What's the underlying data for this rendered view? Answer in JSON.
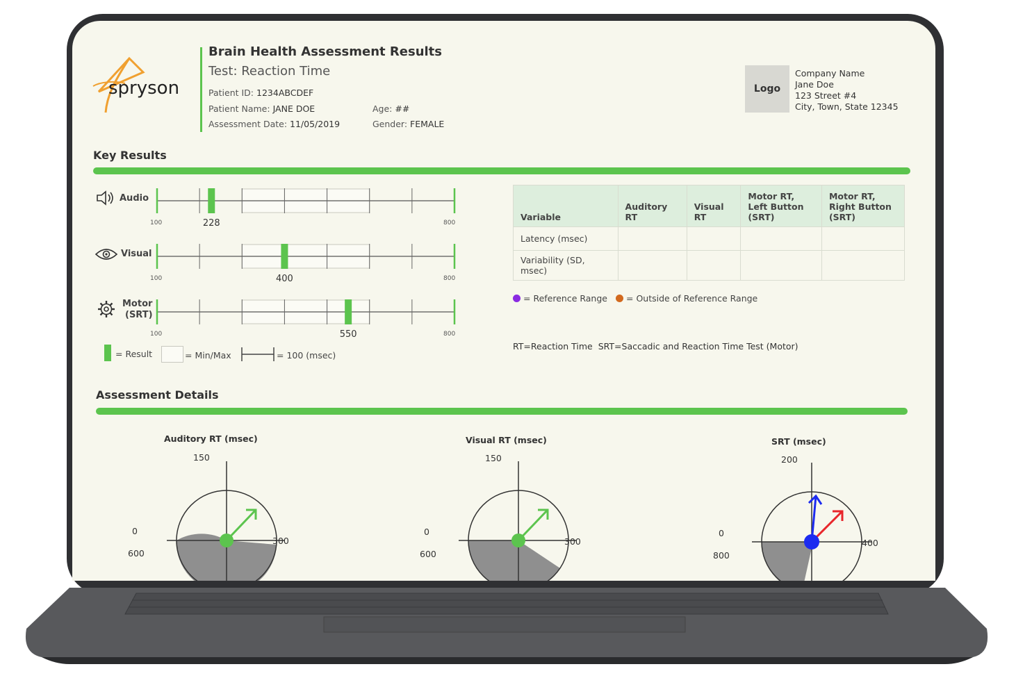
{
  "report": {
    "title": "Brain Health Assessment Results",
    "subtitle": "Test: Reaction Time",
    "patient_id_label": "Patient ID:",
    "patient_id": "1234ABCDEF",
    "patient_name_label": "Patient Name:",
    "patient_name": "JANE DOE",
    "assessment_date_label": "Assessment Date:",
    "assessment_date": "11/05/2019",
    "age_label": "Age:",
    "age": "##",
    "gender_label": "Gender:",
    "gender": "FEMALE"
  },
  "brand": {
    "name": "spryson",
    "accent": "#f0a030"
  },
  "company": {
    "logo_placeholder": "Logo",
    "name": "Company Name",
    "contact": "Jane Doe",
    "street": "123 Street #4",
    "city": "City, Town, State 12345"
  },
  "key_results": {
    "title": "Key Results",
    "scale_min": "100",
    "scale_max": "800",
    "rows": [
      {
        "label": "Audio",
        "label2": "",
        "icon": "speaker-icon",
        "result": 228,
        "result_label": "228"
      },
      {
        "label": "Visual",
        "label2": "",
        "icon": "eye-icon",
        "result": 400,
        "result_label": "400"
      },
      {
        "label": "Motor",
        "label2": "(SRT)",
        "icon": "gear-icon",
        "result": 550,
        "result_label": "550"
      }
    ],
    "legend": {
      "result": "= Result",
      "minmax": "= Min/Max",
      "unit": "= 100 (msec)"
    }
  },
  "variables_table": {
    "headers": [
      "Variable",
      "Auditory RT",
      "Visual RT",
      "Motor RT, Left Button (SRT)",
      "Motor RT, Right Button (SRT)"
    ],
    "rows": [
      [
        "Latency (msec)",
        "",
        "",
        "",
        ""
      ],
      [
        "Variability (SD, msec)",
        "",
        "",
        "",
        ""
      ]
    ],
    "legend_reference": "= Reference Range",
    "legend_outside": "= Outside of Reference Range",
    "reference_color": "#8a2be2",
    "outside_color": "#d2691e"
  },
  "abbreviations": {
    "rt": "RT=Reaction Time",
    "srt": "SRT=Saccadic and Reaction Time Test (Motor)"
  },
  "assessment_details": {
    "title": "Assessment Details",
    "dials": [
      {
        "title": "Auditory RT (msec)",
        "top": "150",
        "right": "300",
        "left_top": "0",
        "left_bottom": "600"
      },
      {
        "title": "Visual RT (msec)",
        "top": "150",
        "right": "300",
        "left_top": "0",
        "left_bottom": "600"
      },
      {
        "title": "SRT (msec)",
        "top": "200",
        "right": "400",
        "left_top": "0",
        "left_bottom": "800"
      }
    ]
  }
}
